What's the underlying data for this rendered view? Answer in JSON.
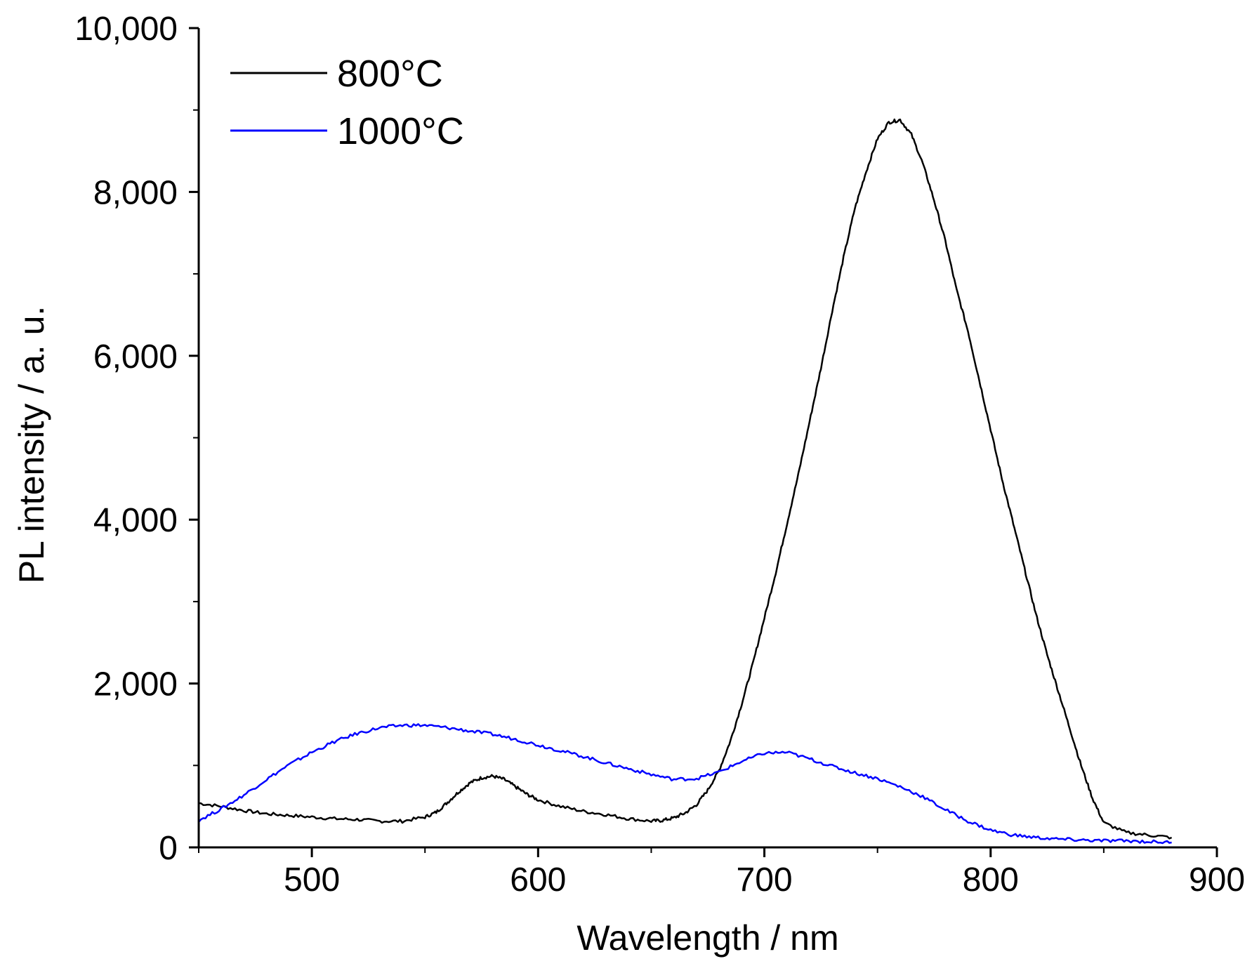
{
  "chart_data": {
    "type": "line",
    "title": "",
    "xlabel": "Wavelength / nm",
    "ylabel": "PL intensity / a. u.",
    "xlim": [
      450,
      900
    ],
    "ylim": [
      0,
      10000
    ],
    "x_ticks": [
      500,
      600,
      700,
      800,
      900
    ],
    "x_tick_labels": [
      "500",
      "600",
      "700",
      "800",
      "900"
    ],
    "y_ticks": [
      0,
      2000,
      4000,
      6000,
      8000,
      10000
    ],
    "y_tick_labels": [
      "0",
      "2,000",
      "4,000",
      "6,000",
      "8,000",
      "10,000"
    ],
    "grid": false,
    "legend_position": "top-left",
    "series": [
      {
        "name": "800°C",
        "color": "#000000",
        "x": [
          450,
          460,
          470,
          480,
          490,
          500,
          510,
          520,
          530,
          540,
          550,
          555,
          560,
          565,
          570,
          575,
          580,
          585,
          590,
          595,
          600,
          610,
          620,
          630,
          640,
          650,
          655,
          660,
          665,
          670,
          675,
          680,
          685,
          690,
          695,
          700,
          705,
          710,
          715,
          720,
          725,
          730,
          735,
          740,
          745,
          750,
          755,
          760,
          765,
          770,
          775,
          780,
          785,
          790,
          795,
          800,
          805,
          810,
          815,
          820,
          825,
          830,
          835,
          840,
          845,
          850,
          860,
          870,
          880
        ],
        "values": [
          540,
          500,
          450,
          410,
          390,
          370,
          350,
          340,
          320,
          320,
          370,
          430,
          550,
          680,
          790,
          850,
          870,
          830,
          740,
          650,
          580,
          500,
          440,
          400,
          350,
          320,
          330,
          360,
          420,
          520,
          700,
          940,
          1300,
          1750,
          2250,
          2800,
          3350,
          3950,
          4550,
          5200,
          5850,
          6550,
          7200,
          7800,
          8250,
          8650,
          8850,
          8880,
          8700,
          8350,
          7900,
          7400,
          6800,
          6300,
          5700,
          5100,
          4500,
          3950,
          3400,
          2850,
          2350,
          1900,
          1450,
          1000,
          600,
          300,
          180,
          150,
          120
        ]
      },
      {
        "name": "1000°C",
        "color": "#0000ff",
        "x": [
          450,
          460,
          470,
          480,
          490,
          500,
          510,
          520,
          530,
          540,
          550,
          560,
          570,
          580,
          590,
          600,
          610,
          620,
          630,
          640,
          650,
          660,
          670,
          680,
          690,
          700,
          710,
          720,
          730,
          740,
          750,
          760,
          770,
          780,
          790,
          800,
          810,
          820,
          830,
          840,
          850,
          860,
          870,
          880
        ],
        "values": [
          330,
          470,
          640,
          830,
          1010,
          1160,
          1290,
          1390,
          1460,
          1490,
          1490,
          1460,
          1420,
          1380,
          1320,
          1250,
          1180,
          1110,
          1030,
          960,
          890,
          830,
          840,
          920,
          1050,
          1150,
          1160,
          1080,
          990,
          910,
          840,
          740,
          620,
          460,
          320,
          210,
          150,
          120,
          100,
          90,
          80,
          80,
          70,
          60
        ]
      }
    ]
  }
}
